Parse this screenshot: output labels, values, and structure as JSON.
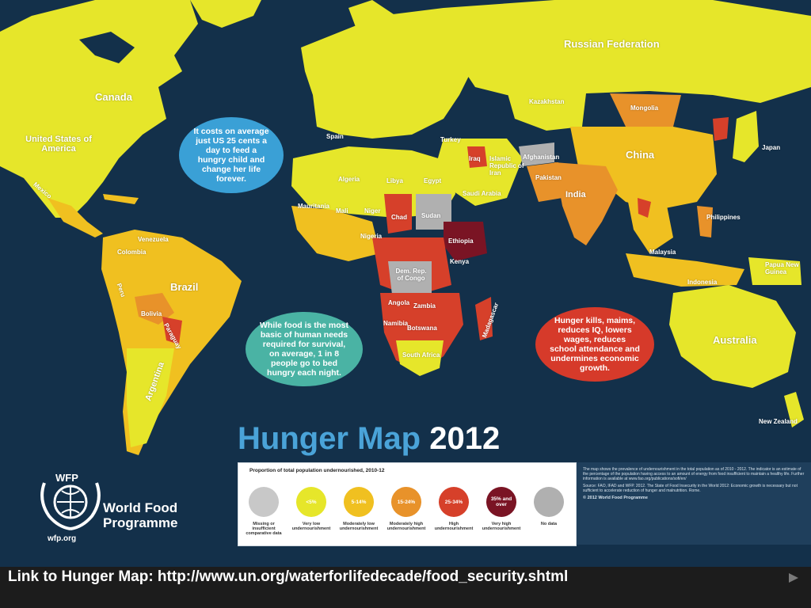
{
  "title": {
    "part1": "Hunger Map",
    "part2": "2012"
  },
  "bubbles": {
    "cost": "It costs on average just US 25 cents a day to feed a hungry child and change her life forever.",
    "food": "While food is the most basic of human needs required for survival, on average, 1 in 8 people go to bed hungry each night.",
    "kills": "Hunger kills, maims, reduces IQ, lowers wages, reduces school attendance and undermines economic growth."
  },
  "countries": {
    "russia": "Russian Federation",
    "canada": "Canada",
    "usa": "United States of America",
    "china": "China",
    "india": "India",
    "mongolia": "Mongolia",
    "kazakhstan": "Kazakhstan",
    "brazil": "Brazil",
    "australia": "Australia",
    "indonesia": "Indonesia",
    "argentina": "Argentina",
    "bolivia": "Bolivia",
    "peru": "Peru",
    "colombia": "Colombia",
    "venezuela": "Venezuela",
    "mexico": "Mexico",
    "algeria": "Algeria",
    "libya": "Libya",
    "egypt": "Egypt",
    "sudan": "Sudan",
    "chad": "Chad",
    "niger": "Niger",
    "mali": "Mali",
    "mauritania": "Mauritania",
    "nigeria": "Nigeria",
    "ethiopia": "Ethiopia",
    "kenya": "Kenya",
    "drc": "Dem. Rep. of Congo",
    "angola": "Angola",
    "zambia": "Zambia",
    "namibia": "Namibia",
    "botswana": "Botswana",
    "south_africa": "South Africa",
    "madagascar": "Madagascar",
    "iraq": "Iraq",
    "iran": "Islamic Republic of Iran",
    "afghanistan": "Afghanistan",
    "pakistan": "Pakistan",
    "saudi": "Saudi Arabia",
    "japan": "Japan",
    "philippines": "Philippines",
    "papua": "Papua New Guinea",
    "new_zealand": "New Zealand",
    "paraguay": "Paraguay",
    "spain": "Spain",
    "turkey": "Turkey",
    "malaysia": "Malaysia"
  },
  "legend": {
    "heading": "Proportion of total population undernourished, 2010-12",
    "items": [
      {
        "value": "",
        "label": "Missing or insufficient comparative data",
        "color": "#c8c8c8"
      },
      {
        "value": "<5%",
        "label": "Very low undernourishment",
        "color": "#e6e62a"
      },
      {
        "value": "5-14%",
        "label": "Moderately low undernourishment",
        "color": "#f0c020"
      },
      {
        "value": "15-24%",
        "label": "Moderately high undernourishment",
        "color": "#e8922a"
      },
      {
        "value": "25-34%",
        "label": "High undernourishment",
        "color": "#d6402a"
      },
      {
        "value": "35% and over",
        "label": "Very high undernourishment",
        "color": "#7a1424"
      },
      {
        "value": "",
        "label": "No data",
        "color": "#b0b0b0"
      }
    ]
  },
  "notes": {
    "intro": "The map shows the prevalence of undernourishment in the total population as of 2010 - 2012. The indicator is an estimate of the percentage of the population having access to an amount of energy from food insufficient to maintain a healthy life. Further information is available at www.fao.org/publications/sofi/en/",
    "source": "Source: FAO, IFAD and WFP. 2012. The State of Food Insecurity in the World 2012: Economic growth is necessary but not sufficient to accelerate reduction of hunger and malnutrition. Rome.",
    "copyright": "© 2012 World Food Programme"
  },
  "wfp": {
    "acronym": "WFP",
    "name": "World Food Programme",
    "url": "wfp.org"
  },
  "footer": {
    "link": "Link to Hunger Map: http://www.un.org/waterforlifedecade/food_security.shtml"
  },
  "colors": {
    "ocean": "#13304a",
    "very_low": "#e6e62a",
    "moderately_low": "#f0c020",
    "moderately_high": "#e8922a",
    "high": "#d6402a",
    "very_high": "#7a1424",
    "missing": "#b0b0b0"
  }
}
